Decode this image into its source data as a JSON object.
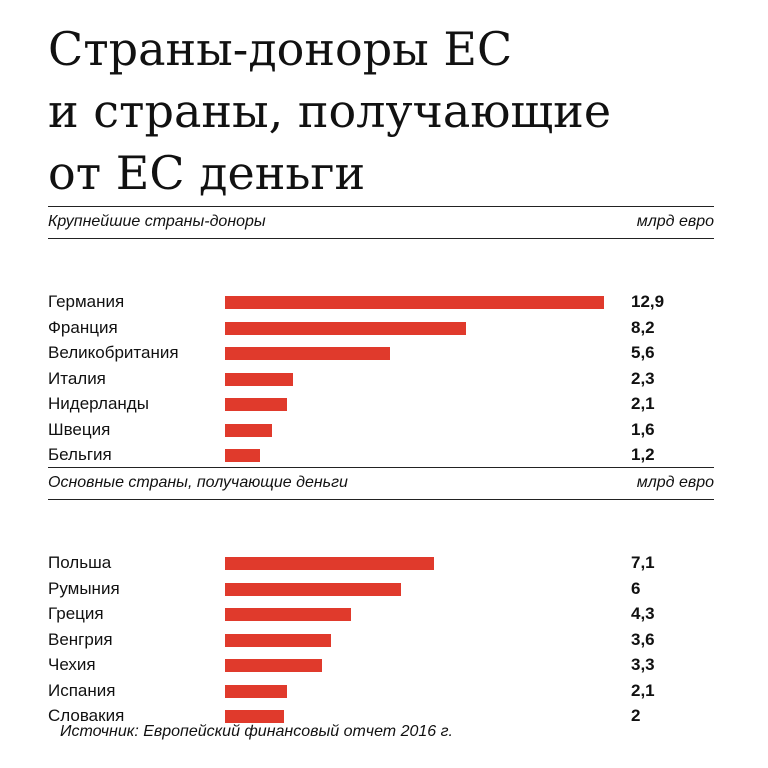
{
  "title_lines": [
    "Страны-доноры ЕС",
    "и страны, получающие",
    "от ЕС деньги"
  ],
  "source": "Источник: Европейский финансовый отчет 2016 г.",
  "colors": {
    "bar": "#e03a2c"
  },
  "chart_data": [
    {
      "type": "bar",
      "orientation": "horizontal",
      "title": "Крупнейшие страны-доноры",
      "unit": "млрд евро",
      "categories": [
        "Германия",
        "Франция",
        "Великобритания",
        "Италия",
        "Нидерланды",
        "Швеция",
        "Бельгия"
      ],
      "values": [
        12.9,
        8.2,
        5.6,
        2.3,
        2.1,
        1.6,
        1.2
      ],
      "value_labels": [
        "12,9",
        "8,2",
        "5,6",
        "2,3",
        "2,1",
        "1,6",
        "1,2"
      ],
      "xlim": [
        0,
        12.9
      ],
      "grid": false
    },
    {
      "type": "bar",
      "orientation": "horizontal",
      "title": "Основные страны, получающие деньги",
      "unit": "млрд евро",
      "categories": [
        "Польша",
        "Румыния",
        "Греция",
        "Венгрия",
        "Чехия",
        "Испания",
        "Словакия"
      ],
      "values": [
        7.1,
        6,
        4.3,
        3.6,
        3.3,
        2.1,
        2
      ],
      "value_labels": [
        "7,1",
        "6",
        "4,3",
        "3,6",
        "3,3",
        "2,1",
        "2"
      ],
      "xlim": [
        0,
        12.9
      ],
      "grid": false
    }
  ]
}
